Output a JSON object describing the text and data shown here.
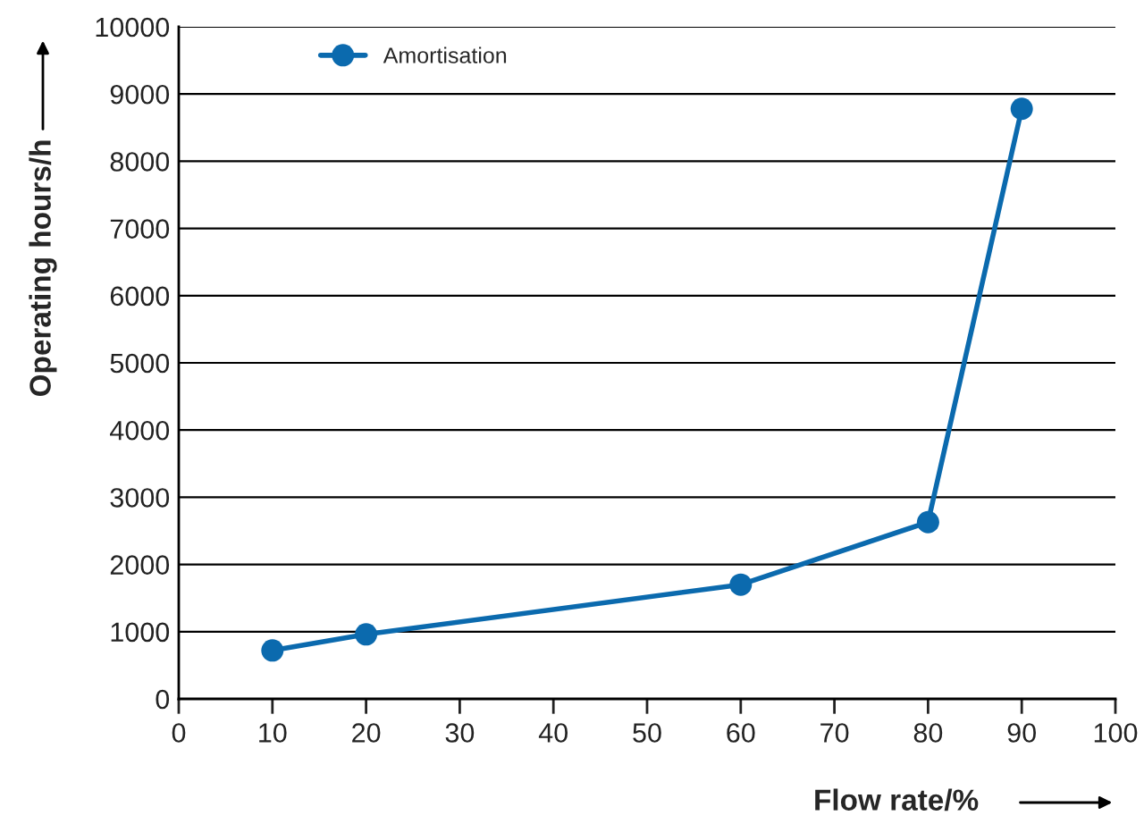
{
  "chart_data": {
    "type": "line",
    "xlabel": "Flow rate/%",
    "ylabel": "Operating hours/h",
    "x": [
      10,
      20,
      60,
      80,
      90
    ],
    "series": [
      {
        "name": "Amortisation",
        "color": "#0b6aae",
        "values": [
          720,
          960,
          1700,
          2630,
          8780
        ]
      }
    ],
    "xlim": [
      0,
      100
    ],
    "xticks": [
      0,
      10,
      20,
      30,
      40,
      50,
      60,
      70,
      80,
      90,
      100
    ],
    "ylim": [
      0,
      10000
    ],
    "yticks": [
      0,
      1000,
      2000,
      3000,
      4000,
      5000,
      6000,
      7000,
      8000,
      9000,
      10000
    ],
    "grid": "y",
    "legend": "top left",
    "marker": "circle",
    "line_style": "solid"
  }
}
